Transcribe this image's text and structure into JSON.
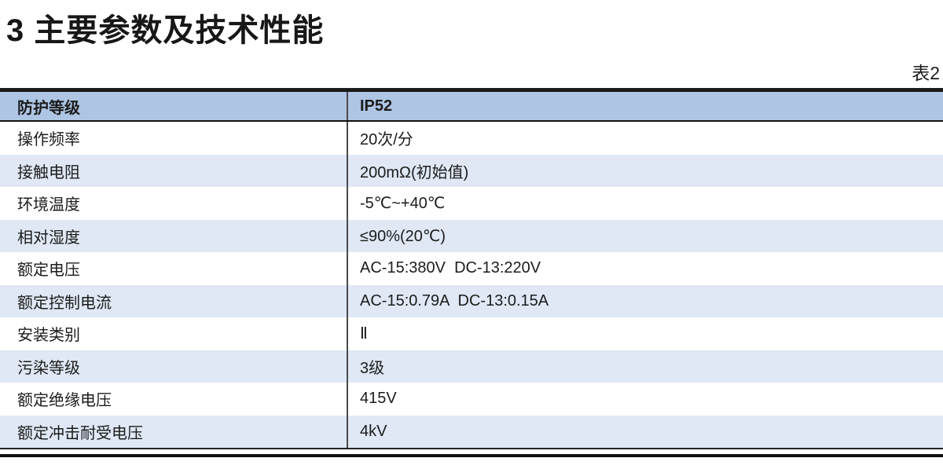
{
  "page": {
    "title": "3 主要参数及技术性能",
    "table_label": "表2"
  },
  "table": {
    "header": {
      "param": "防护等级",
      "value": "IP52"
    },
    "rows": [
      {
        "param": "操作频率",
        "value": "20次/分"
      },
      {
        "param": "接触电阻",
        "value": "200mΩ(初始值)"
      },
      {
        "param": "环境温度",
        "value": "-5℃~+40℃"
      },
      {
        "param": "相对湿度",
        "value": "≤90%(20℃)"
      },
      {
        "param": "额定电压",
        "value": "AC-15:380V  DC-13:220V"
      },
      {
        "param": "额定控制电流",
        "value": "AC-15:0.79A  DC-13:0.15A"
      },
      {
        "param": "安装类别",
        "value": "Ⅱ"
      },
      {
        "param": "污染等级",
        "value": "3级"
      },
      {
        "param": "额定绝缘电压",
        "value": "415V"
      },
      {
        "param": "额定冲击耐受电压",
        "value": "4kV"
      }
    ],
    "colors": {
      "header_bg": "#aec6e4",
      "row_alt_bg": "#dfe8f4",
      "row_bg": "#ffffff",
      "border_dark": "#1a1a1a",
      "divider": "#4a4a4a"
    }
  }
}
